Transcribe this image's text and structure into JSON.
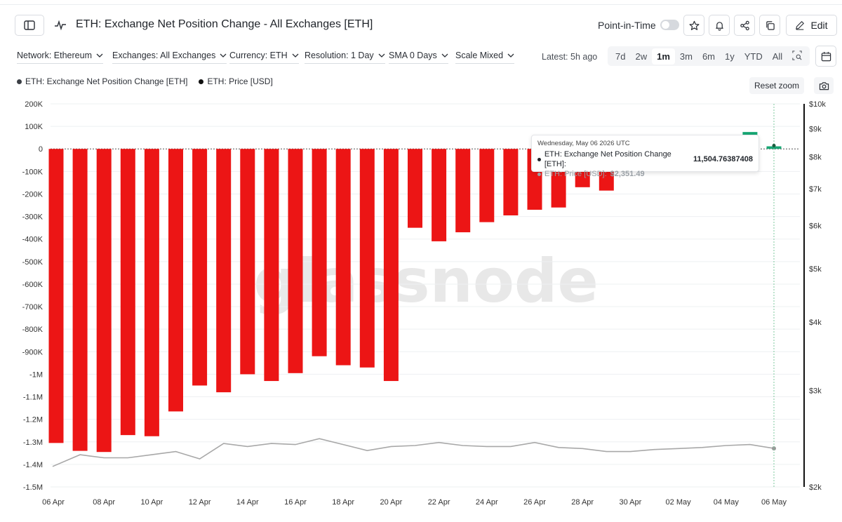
{
  "header": {
    "title": "ETH: Exchange Net Position Change - All Exchanges [ETH]",
    "point_in_time_label": "Point-in-Time",
    "edit_label": "Edit"
  },
  "filters": {
    "network": "Network: Ethereum",
    "exchanges": "Exchanges: All Exchanges",
    "currency": "Currency: ETH",
    "resolution": "Resolution: 1 Day",
    "sma": "SMA 0 Days",
    "scale": "Scale Mixed",
    "latest": "Latest: 5h ago",
    "ranges": [
      "7d",
      "2w",
      "1m",
      "3m",
      "6m",
      "1y",
      "YTD",
      "All"
    ],
    "active_range": "1m"
  },
  "legend": {
    "series1": "ETH: Exchange Net Position Change [ETH]",
    "series2": "ETH: Price [USD]"
  },
  "controls": {
    "reset_zoom": "Reset zoom"
  },
  "watermark": "glassnode",
  "tooltip": {
    "date": "Wednesday, May 06 2026 UTC",
    "s1_label": "ETH: Exchange Net Position Change [ETH]:",
    "s1_value": "11,504.76387408",
    "s2_label": "ETH: Price [USD]:",
    "s2_value": "$2,351.49"
  },
  "colors": {
    "negative_bar": "#ec1515",
    "positive_bar": "#17a673",
    "price_line": "#a8a8a8",
    "crosshair": "#7cc89c"
  },
  "chart_data": {
    "type": "bar",
    "x": [
      "06 Apr",
      "07 Apr",
      "08 Apr",
      "09 Apr",
      "10 Apr",
      "11 Apr",
      "12 Apr",
      "13 Apr",
      "14 Apr",
      "15 Apr",
      "16 Apr",
      "17 Apr",
      "18 Apr",
      "19 Apr",
      "20 Apr",
      "21 Apr",
      "22 Apr",
      "23 Apr",
      "24 Apr",
      "25 Apr",
      "26 Apr",
      "27 Apr",
      "28 Apr",
      "29 Apr",
      "30 Apr",
      "01 May",
      "02 May",
      "03 May",
      "04 May",
      "05 May",
      "06 May"
    ],
    "x_tick_labels": [
      "06 Apr",
      "08 Apr",
      "10 Apr",
      "12 Apr",
      "14 Apr",
      "16 Apr",
      "18 Apr",
      "20 Apr",
      "22 Apr",
      "24 Apr",
      "26 Apr",
      "28 Apr",
      "30 Apr",
      "02 May",
      "04 May",
      "06 May"
    ],
    "series": [
      {
        "name": "ETH: Exchange Net Position Change [ETH]",
        "values": [
          -1305000,
          -1340000,
          -1345000,
          -1270000,
          -1275000,
          -1165000,
          -1050000,
          -1080000,
          -1000000,
          -1030000,
          -995000,
          -920000,
          -960000,
          -970000,
          -1030000,
          -350000,
          -410000,
          -370000,
          -325000,
          -295000,
          -270000,
          -260000,
          -170000,
          -185000,
          -10000,
          null,
          null,
          null,
          -5000,
          75000,
          11504.76387408
        ]
      },
      {
        "name": "ETH: Price [USD]",
        "values": [
          2180,
          2290,
          2260,
          2260,
          2290,
          2320,
          2250,
          2400,
          2370,
          2400,
          2390,
          2450,
          2390,
          2330,
          2370,
          2380,
          2410,
          2380,
          2370,
          2370,
          2410,
          2360,
          2350,
          2320,
          2320,
          2340,
          2350,
          2360,
          2380,
          2390,
          2351.49
        ]
      }
    ],
    "y_left": {
      "ticks": [
        "200K",
        "100K",
        "0",
        "-100K",
        "-200K",
        "-300K",
        "-400K",
        "-500K",
        "-600K",
        "-700K",
        "-800K",
        "-900K",
        "-1M",
        "-1.1M",
        "-1.2M",
        "-1.3M",
        "-1.4M",
        "-1.5M"
      ],
      "ylim": [
        -1500000,
        200000
      ]
    },
    "y_right": {
      "ticks": [
        "$10k",
        "$9k",
        "$8k",
        "$7k",
        "$6k",
        "$5k",
        "$4k",
        "$3k",
        "$2k"
      ],
      "scale": "log",
      "ylim": [
        2000,
        10000
      ]
    },
    "grid": true
  }
}
